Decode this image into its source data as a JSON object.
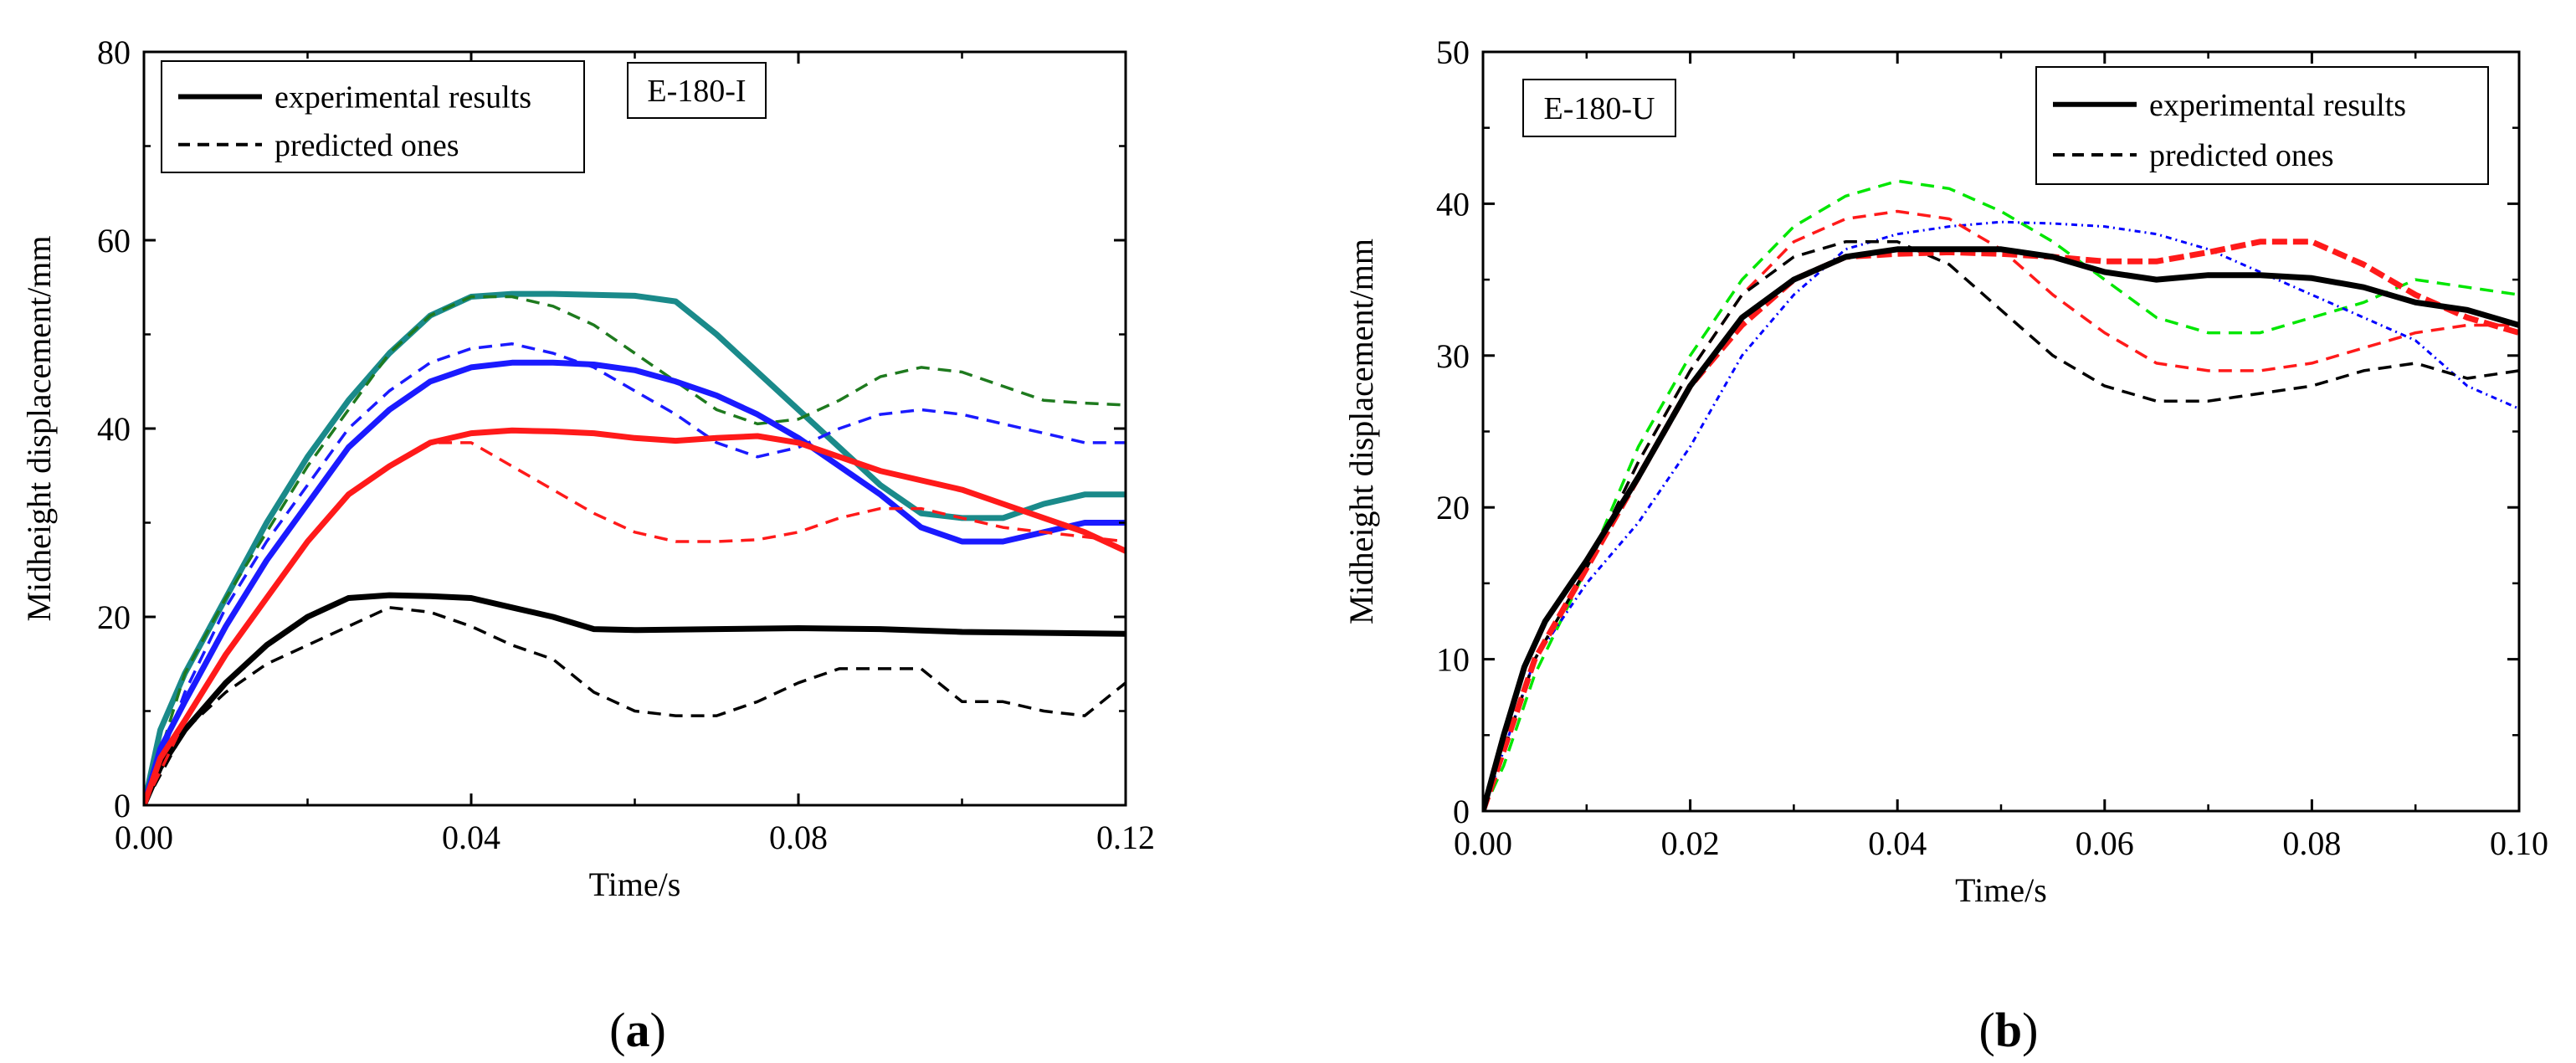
{
  "chart_data": [
    {
      "type": "line",
      "panel_label": "(a)",
      "panel_letter": "a",
      "tag": "E-180-I",
      "xlabel": "Time/s",
      "ylabel": "Midheight displacement/mm",
      "xlim": [
        0,
        0.12
      ],
      "ylim": [
        0,
        80
      ],
      "xticks": [
        0.0,
        0.04,
        0.08,
        0.12
      ],
      "xtick_labels": [
        "0.00",
        "0.04",
        "0.08",
        "0.12"
      ],
      "yticks": [
        0,
        20,
        40,
        60,
        80
      ],
      "ytick_labels": [
        "0",
        "20",
        "40",
        "60",
        "80"
      ],
      "legend": {
        "position": "top-left",
        "entries": [
          {
            "label": "experimental results",
            "style": "solid"
          },
          {
            "label": "predicted ones",
            "style": "dashed"
          }
        ]
      },
      "series": [
        {
          "name": "black experimental",
          "color": "#000000",
          "style": "solid",
          "x": [
            0,
            0.002,
            0.005,
            0.01,
            0.015,
            0.02,
            0.025,
            0.03,
            0.035,
            0.04,
            0.045,
            0.05,
            0.055,
            0.06,
            0.07,
            0.08,
            0.09,
            0.1,
            0.11,
            0.12
          ],
          "y": [
            0,
            4,
            8,
            13,
            17,
            20,
            22,
            22.3,
            22.2,
            22,
            21,
            20,
            18.7,
            18.6,
            18.7,
            18.8,
            18.7,
            18.4,
            18.3,
            18.2
          ]
        },
        {
          "name": "black predicted",
          "color": "#000000",
          "style": "dashed",
          "x": [
            0,
            0.005,
            0.01,
            0.015,
            0.02,
            0.025,
            0.03,
            0.035,
            0.04,
            0.045,
            0.05,
            0.055,
            0.06,
            0.065,
            0.07,
            0.075,
            0.08,
            0.085,
            0.09,
            0.095,
            0.1,
            0.105,
            0.11,
            0.115,
            0.12
          ],
          "y": [
            0,
            8,
            12,
            15,
            17,
            19,
            21,
            20.5,
            19,
            17,
            15.5,
            12,
            10,
            9.5,
            9.5,
            11,
            13,
            14.5,
            14.5,
            14.5,
            11,
            11,
            10,
            9.5,
            13
          ]
        },
        {
          "name": "teal experimental",
          "color": "#1a8a8a",
          "style": "solid",
          "x": [
            0,
            0.002,
            0.005,
            0.01,
            0.015,
            0.02,
            0.025,
            0.03,
            0.035,
            0.04,
            0.045,
            0.05,
            0.055,
            0.06,
            0.065,
            0.07,
            0.075,
            0.08,
            0.085,
            0.09,
            0.095,
            0.1,
            0.105,
            0.11,
            0.115,
            0.12
          ],
          "y": [
            0,
            8,
            14,
            22,
            30,
            37,
            43,
            48,
            52,
            54,
            54.3,
            54.3,
            54.2,
            54.1,
            53.5,
            50,
            46,
            42,
            38,
            34,
            31,
            30.5,
            30.5,
            32,
            33,
            33
          ]
        },
        {
          "name": "green predicted",
          "color": "#1e7a1e",
          "style": "dashed",
          "x": [
            0,
            0.005,
            0.01,
            0.015,
            0.02,
            0.025,
            0.03,
            0.035,
            0.04,
            0.045,
            0.05,
            0.055,
            0.06,
            0.065,
            0.07,
            0.075,
            0.08,
            0.085,
            0.09,
            0.095,
            0.1,
            0.105,
            0.11,
            0.115,
            0.12
          ],
          "y": [
            0,
            14,
            22,
            29,
            36,
            42,
            48,
            52,
            54,
            54,
            53,
            51,
            48,
            45,
            42,
            40.5,
            41,
            43,
            45.5,
            46.5,
            46,
            44.5,
            43,
            42.7,
            42.5
          ]
        },
        {
          "name": "blue experimental",
          "color": "#1a1aff",
          "style": "solid",
          "x": [
            0,
            0.002,
            0.005,
            0.01,
            0.015,
            0.02,
            0.025,
            0.03,
            0.035,
            0.04,
            0.045,
            0.05,
            0.055,
            0.06,
            0.065,
            0.07,
            0.075,
            0.08,
            0.085,
            0.09,
            0.095,
            0.1,
            0.105,
            0.11,
            0.115,
            0.12
          ],
          "y": [
            0,
            6,
            11,
            19,
            26,
            32,
            38,
            42,
            45,
            46.5,
            47,
            47,
            46.8,
            46.2,
            45,
            43.5,
            41.5,
            39,
            36,
            33,
            29.5,
            28,
            28,
            29,
            30,
            30
          ]
        },
        {
          "name": "blue predicted",
          "color": "#1a1aff",
          "style": "dashed",
          "x": [
            0,
            0.005,
            0.01,
            0.015,
            0.02,
            0.025,
            0.03,
            0.035,
            0.04,
            0.045,
            0.05,
            0.055,
            0.06,
            0.065,
            0.07,
            0.075,
            0.08,
            0.085,
            0.09,
            0.095,
            0.1,
            0.105,
            0.11,
            0.115,
            0.12
          ],
          "y": [
            0,
            12,
            21,
            28,
            34,
            40,
            44,
            47,
            48.5,
            49,
            48,
            46.5,
            44,
            41.5,
            38.5,
            37,
            38,
            40,
            41.5,
            42,
            41.5,
            40.5,
            39.5,
            38.5,
            38.5
          ]
        },
        {
          "name": "red experimental",
          "color": "#ff1a1a",
          "style": "solid",
          "x": [
            0,
            0.002,
            0.005,
            0.01,
            0.015,
            0.02,
            0.025,
            0.03,
            0.035,
            0.04,
            0.045,
            0.05,
            0.055,
            0.06,
            0.065,
            0.07,
            0.075,
            0.08,
            0.085,
            0.09,
            0.095,
            0.1,
            0.105,
            0.11,
            0.115,
            0.12
          ],
          "y": [
            0,
            5,
            9,
            16,
            22,
            28,
            33,
            36,
            38.5,
            39.5,
            39.8,
            39.7,
            39.5,
            39,
            38.7,
            39,
            39.2,
            38.5,
            37,
            35.5,
            34.5,
            33.5,
            32,
            30.5,
            29,
            27
          ]
        },
        {
          "name": "red predicted",
          "color": "#ff1a1a",
          "style": "dashed",
          "x": [
            0,
            0.005,
            0.01,
            0.015,
            0.02,
            0.025,
            0.03,
            0.035,
            0.04,
            0.045,
            0.05,
            0.055,
            0.06,
            0.065,
            0.07,
            0.075,
            0.08,
            0.085,
            0.09,
            0.095,
            0.1,
            0.105,
            0.11,
            0.115,
            0.12
          ],
          "y": [
            0,
            9,
            16,
            22,
            28,
            33,
            36,
            38.5,
            38.5,
            36,
            33.5,
            31,
            29,
            28,
            28,
            28.2,
            29,
            30.5,
            31.5,
            31.5,
            30.5,
            29.5,
            29,
            28.5,
            28
          ]
        }
      ]
    },
    {
      "type": "line",
      "panel_label": "(b)",
      "panel_letter": "b",
      "tag": "E-180-U",
      "xlabel": "Time/s",
      "ylabel": "Midheight displacement/mm",
      "xlim": [
        0,
        0.1
      ],
      "ylim": [
        0,
        50
      ],
      "xticks": [
        0.0,
        0.02,
        0.04,
        0.06,
        0.08,
        0.1
      ],
      "xtick_labels": [
        "0.00",
        "0.02",
        "0.04",
        "0.06",
        "0.08",
        "0.10"
      ],
      "yticks": [
        0,
        10,
        20,
        30,
        40,
        50
      ],
      "ytick_labels": [
        "0",
        "10",
        "20",
        "30",
        "40",
        "50"
      ],
      "legend": {
        "position": "top-right",
        "entries": [
          {
            "label": "experimental results",
            "style": "solid"
          },
          {
            "label": "predicted ones",
            "style": "dashed"
          }
        ]
      },
      "series": [
        {
          "name": "green predicted",
          "color": "#00e600",
          "style": "dashed",
          "x": [
            0,
            0.002,
            0.005,
            0.01,
            0.015,
            0.02,
            0.025,
            0.03,
            0.035,
            0.04,
            0.045,
            0.05,
            0.055,
            0.06,
            0.065,
            0.07,
            0.075,
            0.08,
            0.085,
            0.09,
            0.095,
            0.1
          ],
          "y": [
            0,
            3,
            9,
            16,
            24,
            30,
            35,
            38.5,
            40.5,
            41.5,
            41,
            39.5,
            37.5,
            35,
            32.5,
            31.5,
            31.5,
            32.5,
            33.5,
            35,
            34.5,
            34
          ]
        },
        {
          "name": "blue predicted",
          "color": "#0000ff",
          "style": "dotted",
          "x": [
            0,
            0.002,
            0.005,
            0.01,
            0.015,
            0.02,
            0.025,
            0.03,
            0.035,
            0.04,
            0.045,
            0.05,
            0.055,
            0.06,
            0.065,
            0.07,
            0.075,
            0.08,
            0.085,
            0.09,
            0.095,
            0.1
          ],
          "y": [
            0,
            4,
            10,
            15,
            19,
            24,
            30,
            34,
            37,
            38,
            38.5,
            38.8,
            38.7,
            38.5,
            38,
            37,
            35.5,
            34,
            32.5,
            31,
            28,
            26.5
          ]
        },
        {
          "name": "red predicted",
          "color": "#ff1a1a",
          "style": "dashed",
          "x": [
            0,
            0.002,
            0.005,
            0.01,
            0.015,
            0.02,
            0.025,
            0.03,
            0.035,
            0.04,
            0.045,
            0.05,
            0.055,
            0.06,
            0.065,
            0.07,
            0.075,
            0.08,
            0.085,
            0.09,
            0.095,
            0.1
          ],
          "y": [
            0,
            4,
            10,
            16,
            23,
            29,
            34,
            37.5,
            39,
            39.5,
            39,
            37,
            34,
            31.5,
            29.5,
            29,
            29,
            29.5,
            30.5,
            31.5,
            32,
            32
          ]
        },
        {
          "name": "black predicted",
          "color": "#000000",
          "style": "dashed",
          "x": [
            0,
            0.002,
            0.005,
            0.01,
            0.015,
            0.02,
            0.025,
            0.03,
            0.035,
            0.04,
            0.045,
            0.05,
            0.055,
            0.06,
            0.065,
            0.07,
            0.075,
            0.08,
            0.085,
            0.09,
            0.095,
            0.1
          ],
          "y": [
            0,
            4,
            10,
            16,
            23,
            29,
            34,
            36.5,
            37.5,
            37.5,
            36,
            33,
            30,
            28,
            27,
            27,
            27.5,
            28,
            29,
            29.5,
            28.5,
            29
          ]
        },
        {
          "name": "red experimental",
          "color": "#ff1a1a",
          "style": "dashed-bold",
          "x": [
            0,
            0.002,
            0.005,
            0.01,
            0.015,
            0.02,
            0.025,
            0.03,
            0.035,
            0.04,
            0.045,
            0.05,
            0.055,
            0.06,
            0.065,
            0.07,
            0.075,
            0.08,
            0.085,
            0.09,
            0.095,
            0.1
          ],
          "y": [
            0,
            4,
            10,
            16,
            22,
            28,
            32,
            35,
            36.5,
            36.7,
            36.8,
            36.7,
            36.5,
            36.2,
            36.2,
            36.8,
            37.5,
            37.5,
            36,
            34,
            32.5,
            31.5
          ]
        },
        {
          "name": "black experimental",
          "color": "#000000",
          "style": "solid",
          "x": [
            0,
            0.002,
            0.004,
            0.006,
            0.008,
            0.01,
            0.015,
            0.02,
            0.025,
            0.03,
            0.035,
            0.04,
            0.045,
            0.05,
            0.055,
            0.06,
            0.065,
            0.07,
            0.075,
            0.08,
            0.085,
            0.09,
            0.095,
            0.1
          ],
          "y": [
            0,
            5,
            9.5,
            12.5,
            14.5,
            16.5,
            22,
            28,
            32.5,
            35,
            36.5,
            37,
            37,
            37,
            36.5,
            35.5,
            35,
            35.3,
            35.3,
            35.1,
            34.5,
            33.5,
            33,
            32
          ]
        }
      ]
    }
  ]
}
